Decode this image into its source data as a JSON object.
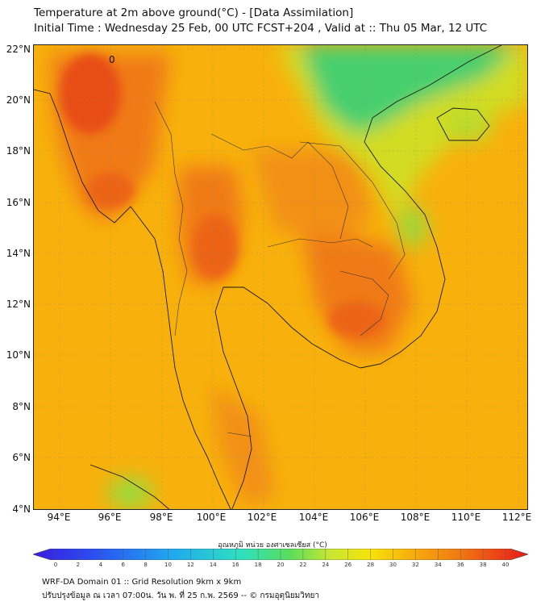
{
  "title_line1": "Temperature at 2m above ground(°C) - [Data Assimilation]",
  "title_line2": "Initial Time : Wednesday 25 Feb, 00 UTC FCST+204 , Valid at :: Thu 05 Mar, 12 UTC",
  "map": {
    "lat_ticks": [
      "22°N",
      "20°N",
      "18°N",
      "16°N",
      "14°N",
      "12°N",
      "10°N",
      "8°N",
      "6°N",
      "4°N"
    ],
    "lon_ticks": [
      "94°E",
      "96°E",
      "98°E",
      "100°E",
      "102°E",
      "104°E",
      "106°E",
      "108°E",
      "110°E",
      "112°E"
    ],
    "lat_range": [
      4,
      22.2
    ],
    "lon_range": [
      93,
      112.3
    ],
    "contour_label": "0"
  },
  "colorbar": {
    "title": "อุณหภูมิ หน่วย องศาเซลเซียส (°C)",
    "min": 0,
    "max": 40,
    "tick_labels": [
      "0",
      "2",
      "4",
      "6",
      "8",
      "10",
      "12",
      "14",
      "16",
      "18",
      "20",
      "22",
      "24",
      "26",
      "28",
      "30",
      "32",
      "34",
      "36",
      "38",
      "40"
    ]
  },
  "footer_line1": "WRF-DA Domain 01 :: Grid Resolution 9km x 9km",
  "footer_line2": "ปรับปรุงข้อมูล ณ เวลา 07:00น. วัน พ. ที่ 25 ก.พ. 2569 -- © กรมอุตุนิยมวิทยา",
  "colors": {
    "base_field": "#f8b10c",
    "warm": "#f07a12",
    "hot": "#e84e16",
    "cool": "#46cf6e",
    "mild": "#d2dc22"
  }
}
